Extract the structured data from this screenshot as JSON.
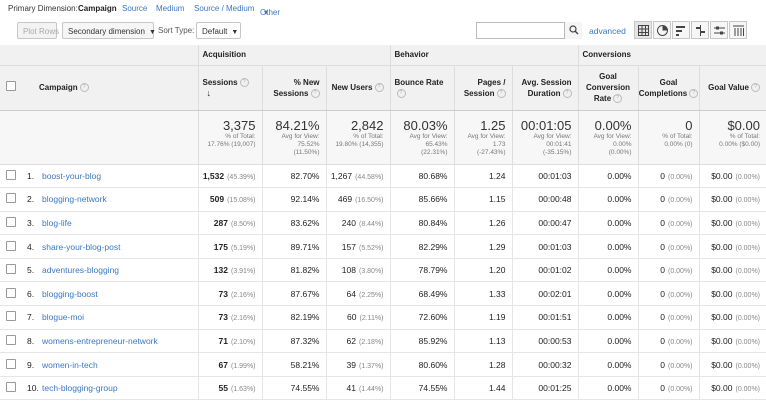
{
  "primary_dimension": {
    "label": "Primary Dimension:",
    "active": "Campaign",
    "options": [
      "Source",
      "Medium",
      "Source / Medium",
      "Other"
    ]
  },
  "toolbar": {
    "plot_rows": "Plot Rows",
    "secondary_dimension": "Secondary dimension",
    "sort_type_label": "Sort Type:",
    "sort_type_value": "Default",
    "advanced": "advanced"
  },
  "groups": {
    "acquisition": "Acquisition",
    "behavior": "Behavior",
    "conversions": "Conversions"
  },
  "headers": {
    "campaign": "Campaign",
    "sessions": "Sessions",
    "new_sessions": "% New Sessions",
    "new_users": "New Users",
    "bounce_rate": "Bounce Rate",
    "pages_session": "Pages / Session",
    "avg_duration": "Avg. Session Duration",
    "goal_conv_rate": "Goal Conversion Rate",
    "goal_completions": "Goal Completions",
    "goal_value": "Goal Value"
  },
  "totals": {
    "sessions": {
      "value": "3,375",
      "sub1": "% of Total:",
      "sub2": "17.76% (19,007)"
    },
    "new_sessions": {
      "value": "84.21%",
      "sub1": "Avg for View:",
      "sub2": "75.52%",
      "sub3": "(11.50%)"
    },
    "new_users": {
      "value": "2,842",
      "sub1": "% of Total:",
      "sub2": "19.80% (14,355)"
    },
    "bounce_rate": {
      "value": "80.03%",
      "sub1": "Avg for View:",
      "sub2": "65.43%",
      "sub3": "(22.31%)"
    },
    "pages_session": {
      "value": "1.25",
      "sub1": "Avg for View:",
      "sub2": "1.73",
      "sub3": "(-27.43%)"
    },
    "avg_duration": {
      "value": "00:01:05",
      "sub1": "Avg for View:",
      "sub2": "00:01:41",
      "sub3": "(-35.15%)"
    },
    "goal_conv_rate": {
      "value": "0.00%",
      "sub1": "Avg for View:",
      "sub2": "0.00%",
      "sub3": "(0.00%)"
    },
    "goal_completions": {
      "value": "0",
      "sub1": "% of Total:",
      "sub2": "0.00% (0)"
    },
    "goal_value": {
      "value": "$0.00",
      "sub1": "% of Total:",
      "sub2": "0.00% ($0.00)"
    }
  },
  "rows": [
    {
      "n": "1.",
      "name": "boost-your-blog",
      "sessions": "1,532",
      "sessions_pct": "(45.39%)",
      "new_sessions": "82.70%",
      "new_users": "1,267",
      "new_users_pct": "(44.58%)",
      "bounce": "80.68%",
      "pages": "1.24",
      "duration": "00:01:03",
      "conv": "0.00%",
      "comp": "0",
      "comp_pct": "(0.00%)",
      "value": "$0.00",
      "value_pct": "(0.00%)"
    },
    {
      "n": "2.",
      "name": "blogging-network",
      "sessions": "509",
      "sessions_pct": "(15.08%)",
      "new_sessions": "92.14%",
      "new_users": "469",
      "new_users_pct": "(16.50%)",
      "bounce": "85.66%",
      "pages": "1.15",
      "duration": "00:00:48",
      "conv": "0.00%",
      "comp": "0",
      "comp_pct": "(0.00%)",
      "value": "$0.00",
      "value_pct": "(0.00%)"
    },
    {
      "n": "3.",
      "name": "blog-life",
      "sessions": "287",
      "sessions_pct": "(8.50%)",
      "new_sessions": "83.62%",
      "new_users": "240",
      "new_users_pct": "(8.44%)",
      "bounce": "80.84%",
      "pages": "1.26",
      "duration": "00:00:47",
      "conv": "0.00%",
      "comp": "0",
      "comp_pct": "(0.00%)",
      "value": "$0.00",
      "value_pct": "(0.00%)"
    },
    {
      "n": "4.",
      "name": "share-your-blog-post",
      "sessions": "175",
      "sessions_pct": "(5.19%)",
      "new_sessions": "89.71%",
      "new_users": "157",
      "new_users_pct": "(5.52%)",
      "bounce": "82.29%",
      "pages": "1.29",
      "duration": "00:01:03",
      "conv": "0.00%",
      "comp": "0",
      "comp_pct": "(0.00%)",
      "value": "$0.00",
      "value_pct": "(0.00%)"
    },
    {
      "n": "5.",
      "name": "adventures-blogging",
      "sessions": "132",
      "sessions_pct": "(3.91%)",
      "new_sessions": "81.82%",
      "new_users": "108",
      "new_users_pct": "(3.80%)",
      "bounce": "78.79%",
      "pages": "1.20",
      "duration": "00:01:02",
      "conv": "0.00%",
      "comp": "0",
      "comp_pct": "(0.00%)",
      "value": "$0.00",
      "value_pct": "(0.00%)"
    },
    {
      "n": "6.",
      "name": "blogging-boost",
      "sessions": "73",
      "sessions_pct": "(2.16%)",
      "new_sessions": "87.67%",
      "new_users": "64",
      "new_users_pct": "(2.25%)",
      "bounce": "68.49%",
      "pages": "1.33",
      "duration": "00:02:01",
      "conv": "0.00%",
      "comp": "0",
      "comp_pct": "(0.00%)",
      "value": "$0.00",
      "value_pct": "(0.00%)"
    },
    {
      "n": "7.",
      "name": "blogue-moi",
      "sessions": "73",
      "sessions_pct": "(2.16%)",
      "new_sessions": "82.19%",
      "new_users": "60",
      "new_users_pct": "(2.11%)",
      "bounce": "72.60%",
      "pages": "1.19",
      "duration": "00:01:51",
      "conv": "0.00%",
      "comp": "0",
      "comp_pct": "(0.00%)",
      "value": "$0.00",
      "value_pct": "(0.00%)"
    },
    {
      "n": "8.",
      "name": "womens-entrepreneur-network",
      "sessions": "71",
      "sessions_pct": "(2.10%)",
      "new_sessions": "87.32%",
      "new_users": "62",
      "new_users_pct": "(2.18%)",
      "bounce": "85.92%",
      "pages": "1.13",
      "duration": "00:00:53",
      "conv": "0.00%",
      "comp": "0",
      "comp_pct": "(0.00%)",
      "value": "$0.00",
      "value_pct": "(0.00%)"
    },
    {
      "n": "9.",
      "name": "women-in-tech",
      "sessions": "67",
      "sessions_pct": "(1.99%)",
      "new_sessions": "58.21%",
      "new_users": "39",
      "new_users_pct": "(1.37%)",
      "bounce": "80.60%",
      "pages": "1.28",
      "duration": "00:00:32",
      "conv": "0.00%",
      "comp": "0",
      "comp_pct": "(0.00%)",
      "value": "$0.00",
      "value_pct": "(0.00%)"
    },
    {
      "n": "10.",
      "name": "tech-blogging-group",
      "sessions": "55",
      "sessions_pct": "(1.63%)",
      "new_sessions": "74.55%",
      "new_users": "41",
      "new_users_pct": "(1.44%)",
      "bounce": "74.55%",
      "pages": "1.44",
      "duration": "00:01:25",
      "conv": "0.00%",
      "comp": "0",
      "comp_pct": "(0.00%)",
      "value": "$0.00",
      "value_pct": "(0.00%)"
    }
  ]
}
